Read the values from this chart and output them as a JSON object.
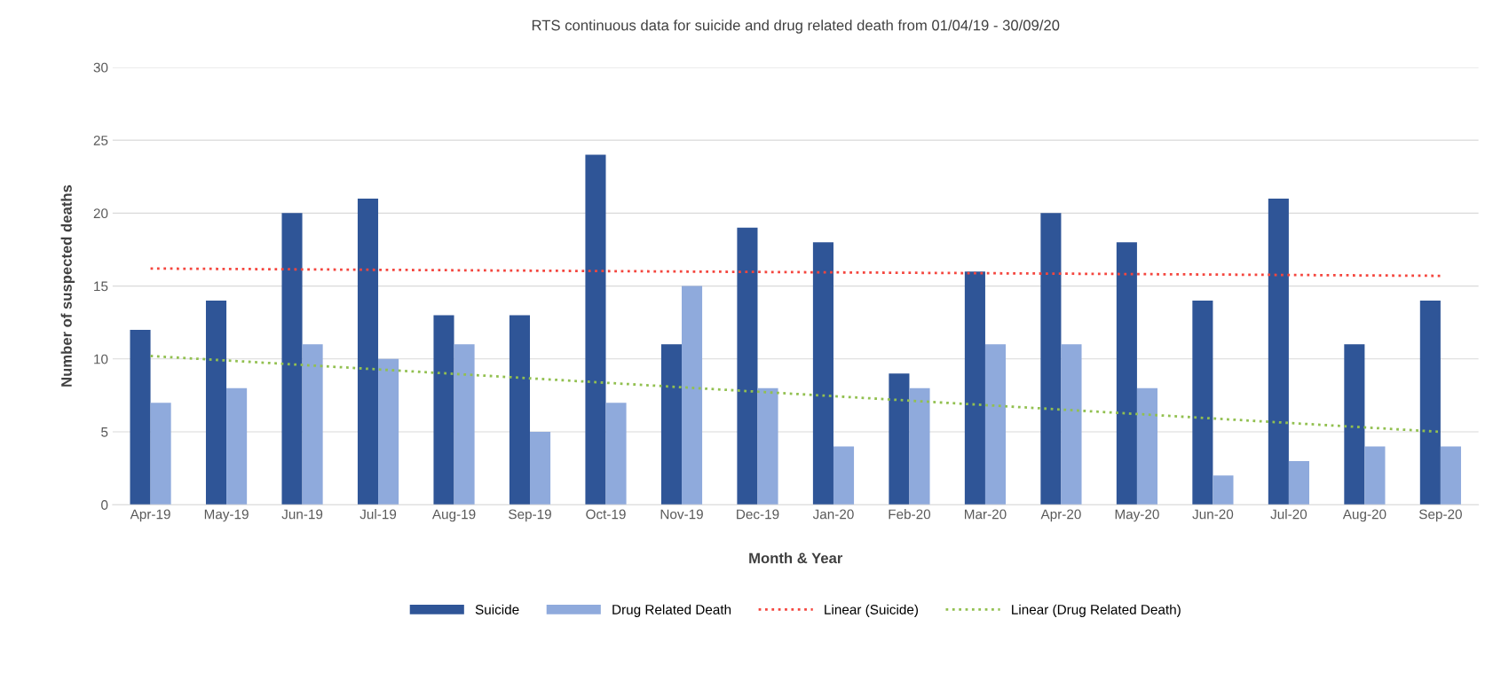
{
  "chart_data": {
    "type": "bar",
    "title": "RTS continuous data for suicide and drug related death from 01/04/19 - 30/09/20",
    "xlabel": "Month & Year",
    "ylabel": "Number of suspected deaths",
    "categories": [
      "Apr-19",
      "May-19",
      "Jun-19",
      "Jul-19",
      "Aug-19",
      "Sep-19",
      "Oct-19",
      "Nov-19",
      "Dec-19",
      "Jan-20",
      "Feb-20",
      "Mar-20",
      "Apr-20",
      "May-20",
      "Jun-20",
      "Jul-20",
      "Aug-20",
      "Sep-20"
    ],
    "series": [
      {
        "name": "Suicide",
        "color": "#2f5597",
        "values": [
          12,
          14,
          20,
          21,
          13,
          13,
          24,
          11,
          19,
          18,
          9,
          16,
          20,
          18,
          14,
          21,
          11,
          14
        ]
      },
      {
        "name": "Drug Related Death",
        "color": "#8faadc",
        "values": [
          7,
          8,
          11,
          10,
          11,
          5,
          7,
          15,
          8,
          4,
          8,
          11,
          11,
          8,
          2,
          3,
          4,
          4
        ]
      },
      {
        "name": "Linear (Suicide)",
        "type": "line",
        "line_style": "dotted",
        "color": "#f4463e",
        "values": [
          16.2,
          null,
          null,
          null,
          null,
          null,
          null,
          null,
          null,
          null,
          null,
          null,
          null,
          null,
          null,
          null,
          null,
          15.7
        ]
      },
      {
        "name": "Linear (Drug Related Death)",
        "type": "line",
        "line_style": "dotted",
        "color": "#92c050",
        "values": [
          10.2,
          null,
          null,
          null,
          null,
          null,
          null,
          null,
          null,
          null,
          null,
          null,
          null,
          null,
          null,
          null,
          null,
          5.0
        ]
      }
    ],
    "ylim": [
      0,
      30
    ],
    "yticks": [
      0,
      5,
      10,
      15,
      20,
      25,
      30
    ],
    "grid": "y",
    "legend": "bottom"
  }
}
